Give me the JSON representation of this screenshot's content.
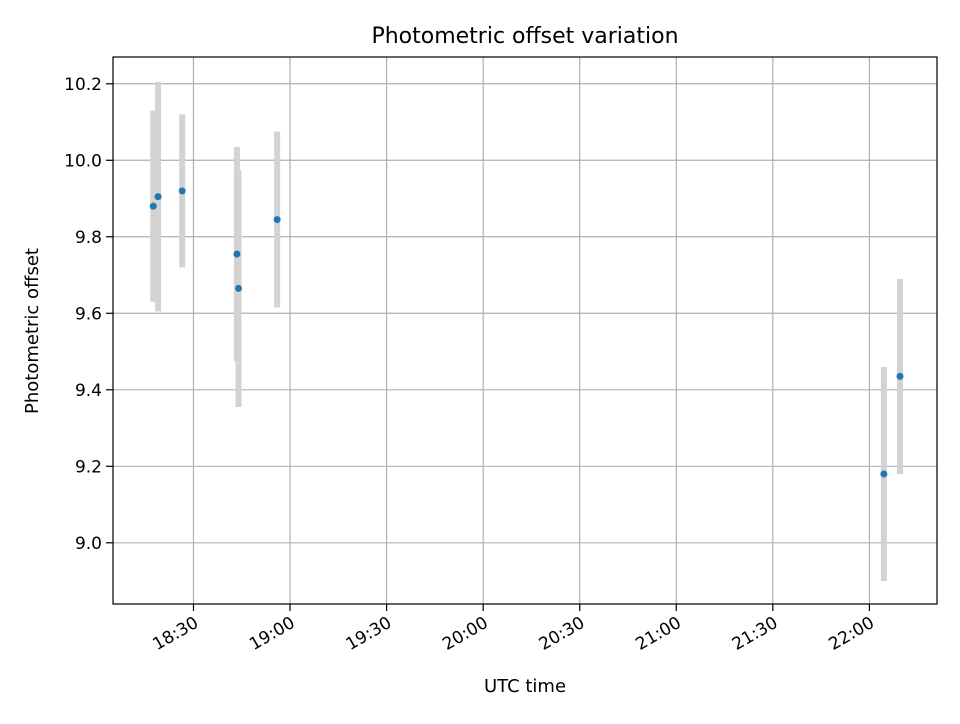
{
  "chart_data": {
    "type": "scatter",
    "title": "Photometric offset variation",
    "xlabel": "UTC time",
    "ylabel": "Photometric offset",
    "xlim": [
      "18:05",
      "22:21"
    ],
    "ylim": [
      8.84,
      10.27
    ],
    "x_ticks": [
      "18:30",
      "19:00",
      "19:30",
      "20:00",
      "20:30",
      "21:00",
      "21:30",
      "22:00"
    ],
    "y_ticks": [
      9.0,
      9.2,
      9.4,
      9.6,
      9.8,
      10.0,
      10.2
    ],
    "grid": true,
    "marker_color": "#1f77b4",
    "errorbar_color": "#d3d3d3",
    "points": [
      {
        "x": "18:17.5",
        "y": 9.88,
        "err": 0.25
      },
      {
        "x": "18:19",
        "y": 9.905,
        "err": 0.3
      },
      {
        "x": "18:26.5",
        "y": 9.92,
        "err": 0.2
      },
      {
        "x": "18:43.5",
        "y": 9.755,
        "err": 0.28
      },
      {
        "x": "18:44",
        "y": 9.665,
        "err": 0.31
      },
      {
        "x": "18:56",
        "y": 9.845,
        "err": 0.23
      },
      {
        "x": "22:04.5",
        "y": 9.18,
        "err": 0.28
      },
      {
        "x": "22:09.5",
        "y": 9.435,
        "err": 0.255
      }
    ]
  }
}
